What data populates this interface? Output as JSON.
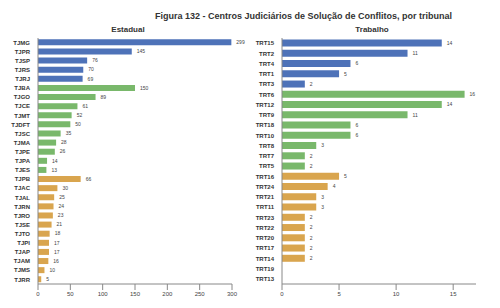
{
  "title": "Figura 132 - Centros Judiciários de Solução de Conflitos, por tribunal",
  "chart_data": [
    {
      "type": "bar",
      "title": "Estadual",
      "orientation": "horizontal",
      "data_labels": true,
      "categories": [
        "TJMG",
        "TJPR",
        "TJSP",
        "TJRS",
        "TJRJ",
        "TJBA",
        "TJGO",
        "TJCE",
        "TJMT",
        "TJDFT",
        "TJSC",
        "TJMA",
        "TJPE",
        "TJPA",
        "TJES",
        "TJPB",
        "TJAC",
        "TJAL",
        "TJRN",
        "TJRO",
        "TJSE",
        "TJTO",
        "TJPI",
        "TJAP",
        "TJAM",
        "TJMS",
        "TJRR"
      ],
      "values": [
        299,
        145,
        76,
        70,
        69,
        150,
        89,
        61,
        52,
        50,
        35,
        28,
        26,
        14,
        13,
        66,
        30,
        25,
        24,
        23,
        21,
        18,
        17,
        17,
        16,
        10,
        5
      ],
      "colors": [
        "#4e72b8",
        "#4e72b8",
        "#4e72b8",
        "#4e72b8",
        "#4e72b8",
        "#79b86b",
        "#79b86b",
        "#79b86b",
        "#79b86b",
        "#79b86b",
        "#79b86b",
        "#79b86b",
        "#79b86b",
        "#79b86b",
        "#79b86b",
        "#d9a54e",
        "#d9a54e",
        "#d9a54e",
        "#d9a54e",
        "#d9a54e",
        "#d9a54e",
        "#d9a54e",
        "#d9a54e",
        "#d9a54e",
        "#d9a54e",
        "#d9a54e",
        "#d9a54e"
      ],
      "xlim": [
        0,
        300
      ],
      "xticks": [
        0,
        50,
        100,
        150,
        200,
        250,
        300
      ]
    },
    {
      "type": "bar",
      "title": "Trabalho",
      "orientation": "horizontal",
      "data_labels": true,
      "categories": [
        "TRT15",
        "TRT2",
        "TRT4",
        "TRT1",
        "TRT3",
        "TRT6",
        "TRT12",
        "TRT9",
        "TRT18",
        "TRT10",
        "TRT8",
        "TRT7",
        "TRT5",
        "TRT16",
        "TRT24",
        "TRT21",
        "TRT11",
        "TRT23",
        "TRT22",
        "TRT20",
        "TRT17",
        "TRT14",
        "TRT19",
        "TRT13"
      ],
      "values": [
        14,
        11,
        6,
        5,
        2,
        16,
        14,
        11,
        6,
        6,
        3,
        2,
        2,
        5,
        4,
        3,
        3,
        2,
        2,
        2,
        2,
        2,
        0,
        0
      ],
      "colors": [
        "#4e72b8",
        "#4e72b8",
        "#4e72b8",
        "#4e72b8",
        "#4e72b8",
        "#79b86b",
        "#79b86b",
        "#79b86b",
        "#79b86b",
        "#79b86b",
        "#79b86b",
        "#79b86b",
        "#79b86b",
        "#d9a54e",
        "#d9a54e",
        "#d9a54e",
        "#d9a54e",
        "#d9a54e",
        "#d9a54e",
        "#d9a54e",
        "#d9a54e",
        "#d9a54e",
        "#d9a54e",
        "#d9a54e"
      ],
      "xlim": [
        0,
        17
      ],
      "xticks": [
        0,
        5,
        10,
        15
      ]
    }
  ]
}
